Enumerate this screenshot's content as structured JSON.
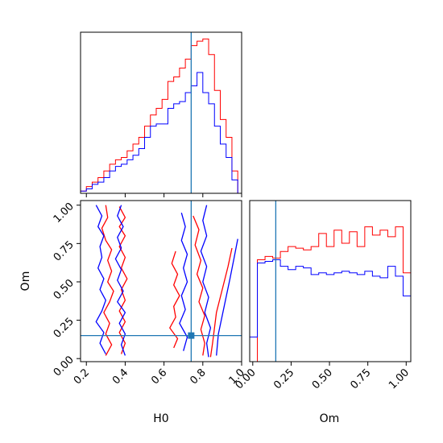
{
  "chart_data": {
    "type": "corner",
    "colors": {
      "series_a": "#ff0000",
      "series_b": "#0000ff",
      "truth": "#1f77b4"
    },
    "parameters": [
      "H0",
      "Om"
    ],
    "truth": {
      "H0": 0.74,
      "Om": 0.15
    },
    "axes": {
      "h0_range": [
        0.17,
        1.0
      ],
      "om_range": [
        -0.02,
        1.03
      ],
      "h0_ticks": [
        "0.2",
        "0.4",
        "0.6",
        "0.8",
        "1.0"
      ],
      "om_ticks": [
        "0.00",
        "0.25",
        "0.50",
        "0.75",
        "1.00"
      ]
    },
    "hist_h0": {
      "bin_edges": [
        0.17,
        0.2,
        0.23,
        0.26,
        0.29,
        0.32,
        0.35,
        0.38,
        0.41,
        0.44,
        0.47,
        0.5,
        0.53,
        0.56,
        0.59,
        0.62,
        0.65,
        0.68,
        0.71,
        0.74,
        0.77,
        0.8,
        0.83,
        0.86,
        0.89,
        0.92,
        0.95,
        0.98,
        1.0
      ],
      "series": [
        {
          "values": [
            1,
            3,
            5,
            7,
            10,
            13,
            15,
            16,
            19,
            22,
            25,
            30,
            35,
            38,
            42,
            50,
            52,
            56,
            60,
            66,
            68,
            69,
            62,
            46,
            33,
            25,
            10,
            0
          ]
        },
        {
          "values": [
            1,
            2,
            4,
            5,
            7,
            10,
            12,
            13,
            15,
            17,
            20,
            25,
            30,
            31,
            31,
            38,
            40,
            41,
            45,
            48,
            54,
            45,
            40,
            30,
            22,
            16,
            6,
            0
          ]
        }
      ]
    },
    "hist_om": {
      "bin_edges": [
        -0.02,
        0.03,
        0.08,
        0.13,
        0.18,
        0.23,
        0.28,
        0.33,
        0.38,
        0.43,
        0.48,
        0.53,
        0.58,
        0.63,
        0.68,
        0.73,
        0.78,
        0.83,
        0.88,
        0.93,
        0.98,
        1.03
      ],
      "series": [
        {
          "values": [
            0,
            0.62,
            0.64,
            0.63,
            0.67,
            0.7,
            0.69,
            0.68,
            0.7,
            0.78,
            0.7,
            0.8,
            0.72,
            0.79,
            0.7,
            0.82,
            0.77,
            0.8,
            0.76,
            0.82,
            0.54
          ]
        },
        {
          "values": [
            0.15,
            0.6,
            0.61,
            0.62,
            0.58,
            0.56,
            0.58,
            0.57,
            0.53,
            0.54,
            0.53,
            0.54,
            0.55,
            0.54,
            0.53,
            0.55,
            0.52,
            0.51,
            0.58,
            0.52,
            0.4
          ]
        }
      ]
    },
    "contours": [
      {
        "series": 0,
        "points": [
          [
            0.3,
            1.0
          ],
          [
            0.31,
            0.92
          ],
          [
            0.28,
            0.85
          ],
          [
            0.3,
            0.77
          ],
          [
            0.33,
            0.71
          ],
          [
            0.31,
            0.64
          ],
          [
            0.33,
            0.57
          ],
          [
            0.31,
            0.5
          ],
          [
            0.34,
            0.44
          ],
          [
            0.32,
            0.37
          ],
          [
            0.29,
            0.3
          ],
          [
            0.32,
            0.23
          ],
          [
            0.3,
            0.16
          ],
          [
            0.33,
            0.09
          ],
          [
            0.3,
            0.02
          ]
        ]
      },
      {
        "series": 0,
        "points": [
          [
            0.37,
            0.99
          ],
          [
            0.4,
            0.92
          ],
          [
            0.37,
            0.86
          ],
          [
            0.4,
            0.8
          ],
          [
            0.37,
            0.73
          ],
          [
            0.4,
            0.66
          ],
          [
            0.38,
            0.59
          ],
          [
            0.41,
            0.52
          ],
          [
            0.38,
            0.45
          ],
          [
            0.4,
            0.38
          ],
          [
            0.37,
            0.31
          ],
          [
            0.4,
            0.24
          ],
          [
            0.37,
            0.17
          ],
          [
            0.4,
            0.1
          ],
          [
            0.38,
            0.03
          ]
        ]
      },
      {
        "series": 0,
        "points": [
          [
            0.66,
            0.7
          ],
          [
            0.64,
            0.62
          ],
          [
            0.67,
            0.55
          ],
          [
            0.65,
            0.48
          ],
          [
            0.68,
            0.41
          ],
          [
            0.65,
            0.34
          ],
          [
            0.66,
            0.27
          ],
          [
            0.63,
            0.2
          ],
          [
            0.67,
            0.13
          ],
          [
            0.65,
            0.07
          ]
        ]
      },
      {
        "series": 0,
        "points": [
          [
            0.75,
            0.93
          ],
          [
            0.78,
            0.84
          ],
          [
            0.76,
            0.74
          ],
          [
            0.79,
            0.64
          ],
          [
            0.77,
            0.55
          ],
          [
            0.8,
            0.46
          ],
          [
            0.78,
            0.37
          ],
          [
            0.81,
            0.28
          ],
          [
            0.79,
            0.19
          ],
          [
            0.81,
            0.1
          ],
          [
            0.8,
            0.02
          ]
        ]
      },
      {
        "series": 0,
        "points": [
          [
            0.95,
            0.72
          ],
          [
            0.93,
            0.6
          ],
          [
            0.91,
            0.5
          ],
          [
            0.89,
            0.4
          ],
          [
            0.87,
            0.3
          ],
          [
            0.86,
            0.2
          ],
          [
            0.85,
            0.1
          ],
          [
            0.84,
            0.01
          ]
        ]
      },
      {
        "series": 1,
        "points": [
          [
            0.25,
            1.0
          ],
          [
            0.28,
            0.93
          ],
          [
            0.26,
            0.86
          ],
          [
            0.29,
            0.8
          ],
          [
            0.27,
            0.73
          ],
          [
            0.28,
            0.66
          ],
          [
            0.26,
            0.59
          ],
          [
            0.29,
            0.52
          ],
          [
            0.27,
            0.45
          ],
          [
            0.3,
            0.38
          ],
          [
            0.28,
            0.31
          ],
          [
            0.25,
            0.24
          ],
          [
            0.29,
            0.17
          ],
          [
            0.27,
            0.1
          ],
          [
            0.3,
            0.03
          ]
        ]
      },
      {
        "series": 1,
        "points": [
          [
            0.38,
            1.0
          ],
          [
            0.36,
            0.93
          ],
          [
            0.39,
            0.86
          ],
          [
            0.36,
            0.79
          ],
          [
            0.38,
            0.72
          ],
          [
            0.35,
            0.65
          ],
          [
            0.38,
            0.58
          ],
          [
            0.36,
            0.51
          ],
          [
            0.39,
            0.44
          ],
          [
            0.36,
            0.37
          ],
          [
            0.4,
            0.3
          ],
          [
            0.37,
            0.23
          ],
          [
            0.4,
            0.16
          ],
          [
            0.38,
            0.09
          ],
          [
            0.4,
            0.02
          ]
        ]
      },
      {
        "series": 1,
        "points": [
          [
            0.69,
            0.95
          ],
          [
            0.71,
            0.86
          ],
          [
            0.69,
            0.77
          ],
          [
            0.72,
            0.68
          ],
          [
            0.7,
            0.59
          ],
          [
            0.72,
            0.5
          ],
          [
            0.69,
            0.41
          ],
          [
            0.71,
            0.32
          ],
          [
            0.68,
            0.23
          ],
          [
            0.72,
            0.14
          ],
          [
            0.7,
            0.05
          ]
        ]
      },
      {
        "series": 1,
        "points": [
          [
            0.82,
            1.0
          ],
          [
            0.8,
            0.9
          ],
          [
            0.82,
            0.8
          ],
          [
            0.79,
            0.7
          ],
          [
            0.82,
            0.6
          ],
          [
            0.8,
            0.5
          ],
          [
            0.83,
            0.4
          ],
          [
            0.81,
            0.3
          ],
          [
            0.84,
            0.2
          ],
          [
            0.82,
            0.1
          ],
          [
            0.83,
            0.01
          ]
        ]
      },
      {
        "series": 1,
        "points": [
          [
            0.98,
            0.78
          ],
          [
            0.96,
            0.65
          ],
          [
            0.94,
            0.52
          ],
          [
            0.92,
            0.4
          ],
          [
            0.9,
            0.28
          ],
          [
            0.88,
            0.16
          ],
          [
            0.87,
            0.02
          ]
        ]
      }
    ]
  }
}
